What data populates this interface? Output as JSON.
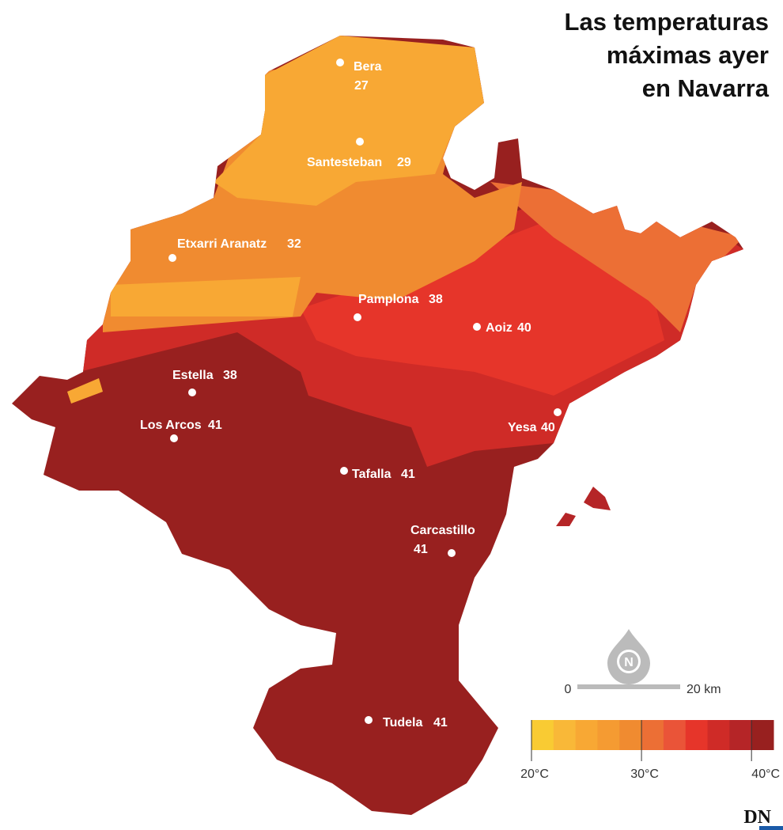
{
  "title": {
    "lines": [
      "Las temperaturas",
      "máximas ayer",
      "en Navarra"
    ]
  },
  "cities": [
    {
      "name": "Bera",
      "value": 27
    },
    {
      "name": "Santesteban",
      "value": 29
    },
    {
      "name": "Etxarri Aranatz",
      "value": 32
    },
    {
      "name": "Pamplona",
      "value": 38
    },
    {
      "name": "Aoiz",
      "value": 40
    },
    {
      "name": "Estella",
      "value": 38
    },
    {
      "name": "Los Arcos",
      "value": 41
    },
    {
      "name": "Yesa",
      "value": 40
    },
    {
      "name": "Tafalla",
      "value": 41
    },
    {
      "name": "Carcastillo",
      "value": 41
    },
    {
      "name": "Tudela",
      "value": 41
    }
  ],
  "compass": "N",
  "scale": {
    "start": "0",
    "end": "20 km"
  },
  "legend": {
    "colors": [
      "#f9cb33",
      "#f9b838",
      "#f8a834",
      "#f59b32",
      "#f08b30",
      "#ec6f35",
      "#ea5438",
      "#e6352a",
      "#cf2b27",
      "#b52527",
      "#98201f"
    ],
    "labels": [
      "20°C",
      "30°C",
      "40°C"
    ]
  },
  "logo": "DN"
}
